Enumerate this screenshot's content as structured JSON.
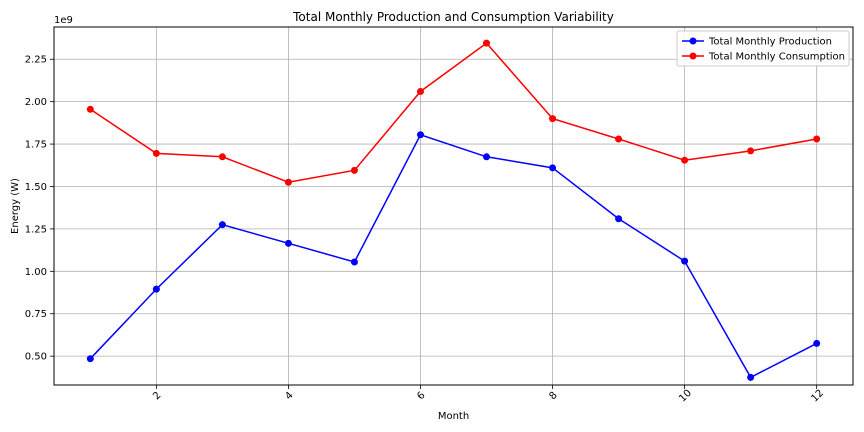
{
  "chart_data": {
    "type": "line",
    "title": "Total Monthly Production and Consumption Variability",
    "xlabel": "Month",
    "ylabel": "Energy (W)",
    "y_offset_label": "1e9",
    "x": [
      1,
      2,
      3,
      4,
      5,
      6,
      7,
      8,
      9,
      10,
      11,
      12
    ],
    "xlim": [
      0.45,
      12.55
    ],
    "ylim": [
      0.33,
      2.44
    ],
    "y_scale_note": "values in units of 1e9",
    "xticks": [
      2,
      4,
      6,
      8,
      10,
      12
    ],
    "yticks": [
      "0.50",
      "0.75",
      "1.00",
      "1.25",
      "1.50",
      "1.75",
      "2.00",
      "2.25"
    ],
    "grid": true,
    "legend_position": "top-right",
    "series": [
      {
        "name": "Total Monthly Production",
        "color": "#0000ff",
        "values": [
          0.485,
          0.895,
          1.275,
          1.165,
          1.055,
          1.805,
          1.675,
          1.61,
          1.31,
          1.06,
          0.375,
          0.575
        ]
      },
      {
        "name": "Total Monthly Consumption",
        "color": "#ff0000",
        "values": [
          1.955,
          1.695,
          1.675,
          1.525,
          1.595,
          2.06,
          2.345,
          1.9,
          1.78,
          1.655,
          1.71,
          1.78
        ]
      }
    ]
  }
}
